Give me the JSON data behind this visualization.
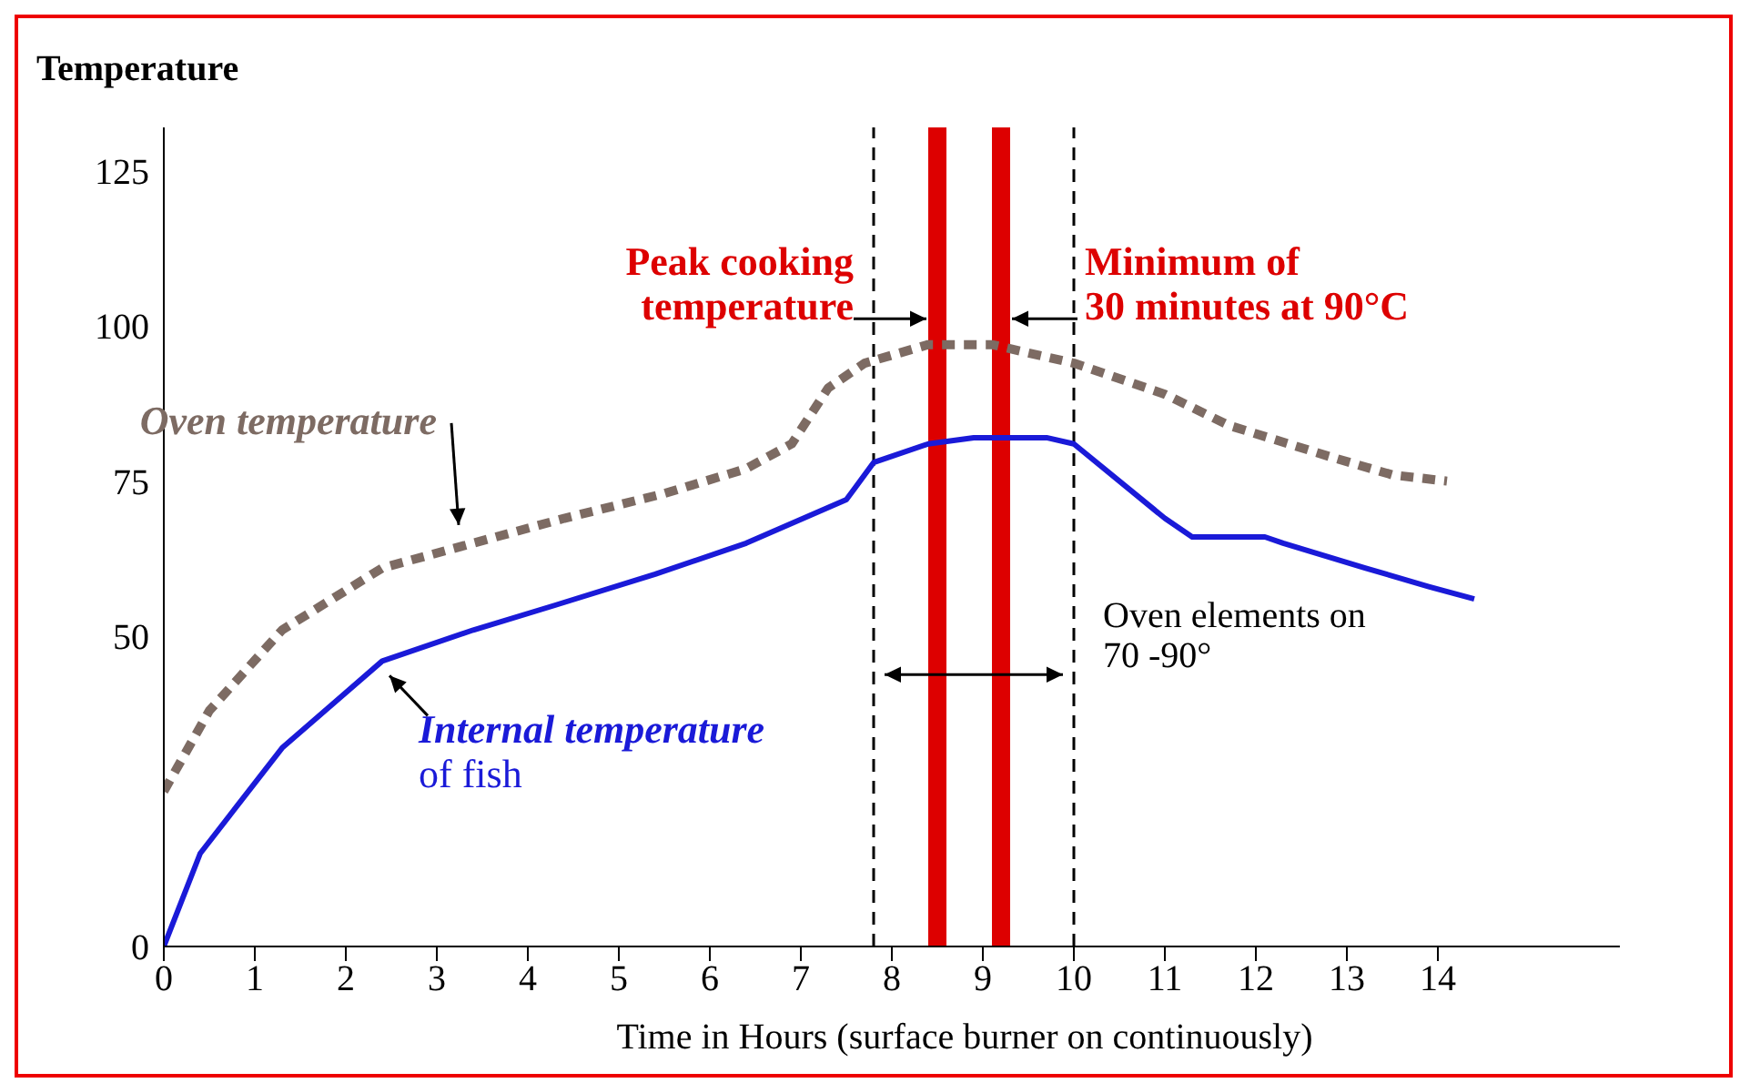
{
  "chart_data": {
    "type": "line",
    "ylabel": "Temperature",
    "xlabel": "Time in Hours (surface burner on continuously)",
    "xlim": [
      0,
      16
    ],
    "xticks": [
      0,
      1,
      2,
      3,
      4,
      5,
      6,
      7,
      8,
      9,
      10,
      11,
      12,
      13,
      14
    ],
    "ylim": [
      0,
      132
    ],
    "yticks": [
      0,
      50,
      75,
      100,
      125
    ],
    "series": [
      {
        "name": "Oven temperature",
        "color": "#7d6b63",
        "line_style": "dashed",
        "x": [
          0,
          0.5,
          1.3,
          2.4,
          3.4,
          4.4,
          5.5,
          6.4,
          6.9,
          7.3,
          7.7,
          8.4,
          9.1,
          10,
          11,
          11.7,
          12.8,
          13.5,
          14.1
        ],
        "values": [
          25,
          38,
          51,
          61,
          65,
          69,
          73,
          77,
          81,
          90,
          94,
          97,
          97,
          94,
          89,
          84,
          79,
          76,
          75
        ]
      },
      {
        "name": "Internal temperature\nof fish",
        "color": "#1a1ad8",
        "line_style": "solid",
        "x": [
          0,
          0.4,
          1.3,
          2.4,
          3.4,
          4.3,
          5.4,
          6.4,
          7.5,
          7.6,
          7.8,
          8.4,
          8.9,
          9.7,
          10,
          11,
          11.3,
          12.1,
          12.3,
          13.2,
          13.9,
          14.4
        ],
        "values": [
          0,
          15,
          32,
          46,
          51,
          55,
          60,
          65,
          72,
          74,
          78,
          81,
          82,
          82,
          81,
          69,
          66,
          66,
          65,
          61,
          58,
          56
        ]
      }
    ],
    "ref_lines": [
      {
        "axis": "x",
        "value": 8.5,
        "color": "#dd0000",
        "line_style": "solid"
      },
      {
        "axis": "x",
        "value": 9.2,
        "color": "#dd0000",
        "line_style": "solid"
      },
      {
        "axis": "x",
        "value": 7.8,
        "color": "#000000",
        "line_style": "dashed"
      },
      {
        "axis": "x",
        "value": 10,
        "color": "#000000",
        "line_style": "dashed"
      }
    ],
    "annotations": [
      {
        "text": "Peak cooking\ntemperature",
        "x": 8.5,
        "y": 100
      },
      {
        "text": "Minimum of\n30 minutes at 90°C",
        "x": 9.2,
        "y": 100
      },
      {
        "text": "Oven elements on\n70 -90°",
        "x": 10,
        "y": 45
      }
    ]
  }
}
